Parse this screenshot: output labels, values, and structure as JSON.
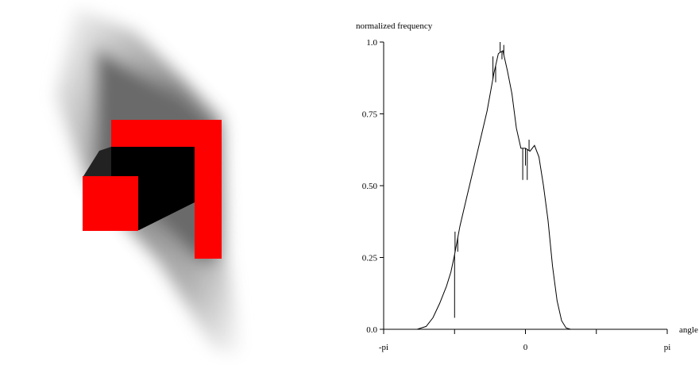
{
  "image_panel": {
    "shape_color": "#ff0000",
    "core_color": "#000000",
    "halo_color": "#808080"
  },
  "chart_data": {
    "type": "line",
    "title": "",
    "xlabel": "angle",
    "ylabel": "normalized frequency",
    "xlim": [
      -3.14159,
      3.14159
    ],
    "ylim": [
      0,
      1
    ],
    "x_ticks": [
      {
        "value": -3.14159,
        "label": "-pi"
      },
      {
        "value": -1.5708,
        "label": ""
      },
      {
        "value": 0,
        "label": "0"
      },
      {
        "value": 1.5708,
        "label": ""
      },
      {
        "value": 3.14159,
        "label": "pi"
      }
    ],
    "y_ticks": [
      {
        "value": 0,
        "label": "0.0"
      },
      {
        "value": 0.25,
        "label": "0.25"
      },
      {
        "value": 0.5,
        "label": "0.50"
      },
      {
        "value": 0.75,
        "label": "0.75"
      },
      {
        "value": 1.0,
        "label": "1.0"
      }
    ],
    "grid": false,
    "line_color": "#000000",
    "series": [
      {
        "x": [
          -3.14,
          -2.4,
          -2.2,
          -2.05,
          -1.9,
          -1.75,
          -1.65,
          -1.57,
          -1.45,
          -1.3,
          -1.15,
          -1.0,
          -0.85,
          -0.7,
          -0.6,
          -0.5,
          -0.4,
          -0.3,
          -0.2,
          -0.1,
          0.0,
          0.1,
          0.2,
          0.3,
          0.4,
          0.5,
          0.6,
          0.7,
          0.8,
          0.9,
          1.0,
          1.2,
          3.14
        ],
        "y": [
          0.0,
          0.0,
          0.01,
          0.04,
          0.09,
          0.15,
          0.2,
          0.26,
          0.36,
          0.46,
          0.56,
          0.66,
          0.76,
          0.89,
          0.96,
          0.97,
          0.9,
          0.82,
          0.7,
          0.63,
          0.63,
          0.62,
          0.64,
          0.6,
          0.5,
          0.38,
          0.22,
          0.1,
          0.03,
          0.005,
          0.0,
          0.0,
          0.0
        ]
      }
    ],
    "noise_spikes": [
      {
        "x": -1.57,
        "y": 0.04
      },
      {
        "x": -1.56,
        "y": 0.34
      },
      {
        "x": -1.5,
        "y": 0.27
      },
      {
        "x": -0.72,
        "y": 0.95
      },
      {
        "x": -0.66,
        "y": 0.86
      },
      {
        "x": -0.56,
        "y": 1.0
      },
      {
        "x": -0.52,
        "y": 0.94
      },
      {
        "x": -0.48,
        "y": 0.99
      },
      {
        "x": -0.06,
        "y": 0.52
      },
      {
        "x": 0.0,
        "y": 0.57
      },
      {
        "x": 0.04,
        "y": 0.52
      },
      {
        "x": 0.08,
        "y": 0.66
      }
    ]
  }
}
